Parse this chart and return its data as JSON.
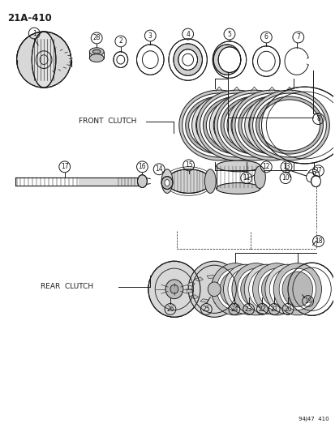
{
  "title": "21A-410",
  "bottom_right": "94J47  410",
  "label_front": "FRONT  CLUTCH",
  "label_rear": "REAR  CLUTCH",
  "bg": "#ffffff",
  "lc": "#1a1a1a",
  "fig_w": 4.14,
  "fig_h": 5.33,
  "dpi": 100
}
